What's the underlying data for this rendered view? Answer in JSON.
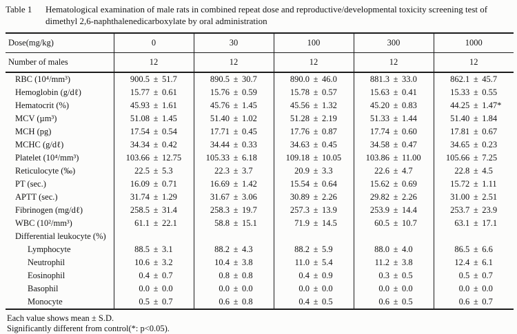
{
  "caption": {
    "label": "Table 1",
    "text": "Hematological examination of male rats in combined repeat dose and reproductive/developmental toxicity screening test of dimethyl 2,6-naphthalenedicarboxylate by oral administration"
  },
  "table": {
    "header": {
      "dose_label": "Dose(mg/kg)",
      "doses": [
        "0",
        "30",
        "100",
        "300",
        "1000"
      ],
      "males_label": "Number of males",
      "males_counts": [
        "12",
        "12",
        "12",
        "12",
        "12"
      ]
    },
    "rows": [
      {
        "label": "RBC (10⁴/mm³)",
        "indent": 1,
        "values": [
          "900.5 ± 51.7",
          "890.5 ± 30.7",
          "890.0 ± 46.0",
          "881.3 ± 33.0",
          "862.1 ± 45.7"
        ]
      },
      {
        "label": "Hemoglobin (g/dℓ)",
        "indent": 1,
        "values": [
          "15.77 ± 0.61",
          "15.76 ± 0.59",
          "15.78 ± 0.57",
          "15.63 ± 0.41",
          "15.33 ± 0.55"
        ]
      },
      {
        "label": "Hematocrit (%)",
        "indent": 1,
        "values": [
          "45.93 ± 1.61",
          "45.76 ± 1.45",
          "45.56 ± 1.32",
          "45.20 ± 0.83",
          "44.25 ± 1.47*"
        ]
      },
      {
        "label": "MCV (µm³)",
        "indent": 1,
        "values": [
          "51.08 ± 1.45",
          "51.40 ± 1.02",
          "51.28 ± 2.19",
          "51.33 ± 1.44",
          "51.40 ± 1.84"
        ]
      },
      {
        "label": "MCH (pg)",
        "indent": 1,
        "values": [
          "17.54 ± 0.54",
          "17.71 ± 0.45",
          "17.76 ± 0.87",
          "17.74 ± 0.60",
          "17.81 ± 0.67"
        ]
      },
      {
        "label": "MCHC (g/dℓ)",
        "indent": 1,
        "values": [
          "34.34 ± 0.42",
          "34.44 ± 0.33",
          "34.63 ± 0.45",
          "34.58 ± 0.47",
          "34.65 ± 0.23"
        ]
      },
      {
        "label": "Platelet (10⁴/mm³)",
        "indent": 1,
        "values": [
          "103.66 ± 12.75",
          "105.33 ± 6.18",
          "109.18 ± 10.05",
          "103.86 ± 11.00",
          "105.66 ± 7.25"
        ]
      },
      {
        "label": "Reticulocyte (‰)",
        "indent": 1,
        "values": [
          "22.5 ± 5.3",
          "22.3 ± 3.7",
          "20.9 ± 3.3",
          "22.6 ± 4.7",
          "22.8 ± 4.5"
        ]
      },
      {
        "label": "PT (sec.)",
        "indent": 1,
        "values": [
          "16.09 ± 0.71",
          "16.69 ± 1.42",
          "15.54 ± 0.64",
          "15.62 ± 0.69",
          "15.72 ± 1.11"
        ]
      },
      {
        "label": "APTT (sec.)",
        "indent": 1,
        "values": [
          "31.74 ± 1.29",
          "31.67 ± 3.06",
          "30.89 ± 2.26",
          "29.82 ± 2.26",
          "31.00 ± 2.51"
        ]
      },
      {
        "label": "Fibrinogen (mg/dℓ)",
        "indent": 1,
        "values": [
          "258.5 ± 31.4",
          "258.3 ± 19.7",
          "257.3 ± 13.9",
          "253.9 ± 14.4",
          "253.7 ± 23.9"
        ]
      },
      {
        "label": "WBC (10²/mm³)",
        "indent": 1,
        "values": [
          "61.1 ± 22.1",
          "58.8 ± 15.1",
          "71.9 ± 14.5",
          "60.5 ± 10.7",
          "63.1 ± 17.1"
        ]
      },
      {
        "label": "Differential leukocyte (%)",
        "indent": 1,
        "values": [
          "",
          "",
          "",
          "",
          ""
        ]
      },
      {
        "label": "Lymphocyte",
        "indent": 2,
        "values": [
          "88.5 ± 3.1",
          "88.2 ± 4.3",
          "88.2 ± 5.9",
          "88.0 ± 4.0",
          "86.5 ± 6.6"
        ]
      },
      {
        "label": "Neutrophil",
        "indent": 2,
        "values": [
          "10.6 ± 3.2",
          "10.4 ± 3.8",
          "11.0 ± 5.4",
          "11.2 ± 3.8",
          "12.4 ± 6.1"
        ]
      },
      {
        "label": "Eosinophil",
        "indent": 2,
        "values": [
          "0.4 ± 0.7",
          "0.8 ± 0.8",
          "0.4 ± 0.9",
          "0.3 ± 0.5",
          "0.5 ± 0.7"
        ]
      },
      {
        "label": "Basophil",
        "indent": 2,
        "values": [
          "0.0 ± 0.0",
          "0.0 ± 0.0",
          "0.0 ± 0.0",
          "0.0 ± 0.0",
          "0.0 ± 0.0"
        ]
      },
      {
        "label": "Monocyte",
        "indent": 2,
        "values": [
          "0.5 ± 0.7",
          "0.6 ± 0.8",
          "0.4 ± 0.5",
          "0.6 ± 0.5",
          "0.6 ± 0.7"
        ]
      }
    ]
  },
  "footnotes": [
    "Each value shows mean ± S.D.",
    "Significantly different from control(*: p<0.05)."
  ]
}
